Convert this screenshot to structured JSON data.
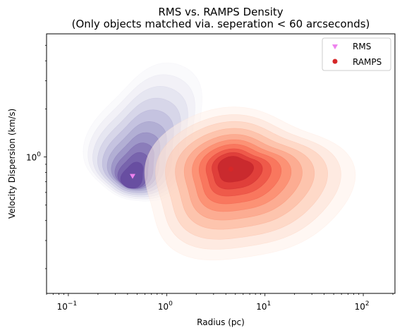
{
  "chart_data": {
    "type": "kde-density",
    "title_line1": "RMS vs. RAMPS Density",
    "title_line2": "(Only objects matched via. seperation < 60 arcseconds)",
    "xlabel": "Radius (pc)",
    "ylabel": "Velocity Dispersion (km/s)",
    "xscale": "log",
    "yscale": "log",
    "xlim": [
      0.06,
      210
    ],
    "ylim": [
      0.14,
      5.9
    ],
    "x_ticks": [
      {
        "base": "10",
        "exp": "−1",
        "value": 0.1
      },
      {
        "base": "10",
        "exp": "0",
        "value": 1
      },
      {
        "base": "10",
        "exp": "1",
        "value": 10
      },
      {
        "base": "10",
        "exp": "2",
        "value": 100
      }
    ],
    "y_ticks": [
      {
        "base": "10",
        "exp": "0",
        "value": 1
      }
    ],
    "legend_position": "top-right",
    "series": [
      {
        "name": "RMS",
        "marker": "triangle-down",
        "marker_color": "#ee82ee",
        "colormap": "Purples",
        "center": [
          0.45,
          0.76
        ]
      },
      {
        "name": "RAMPS",
        "marker": "circle",
        "marker_color": "#d62728",
        "colormap": "Reds",
        "center": [
          4.5,
          0.84
        ]
      }
    ]
  }
}
